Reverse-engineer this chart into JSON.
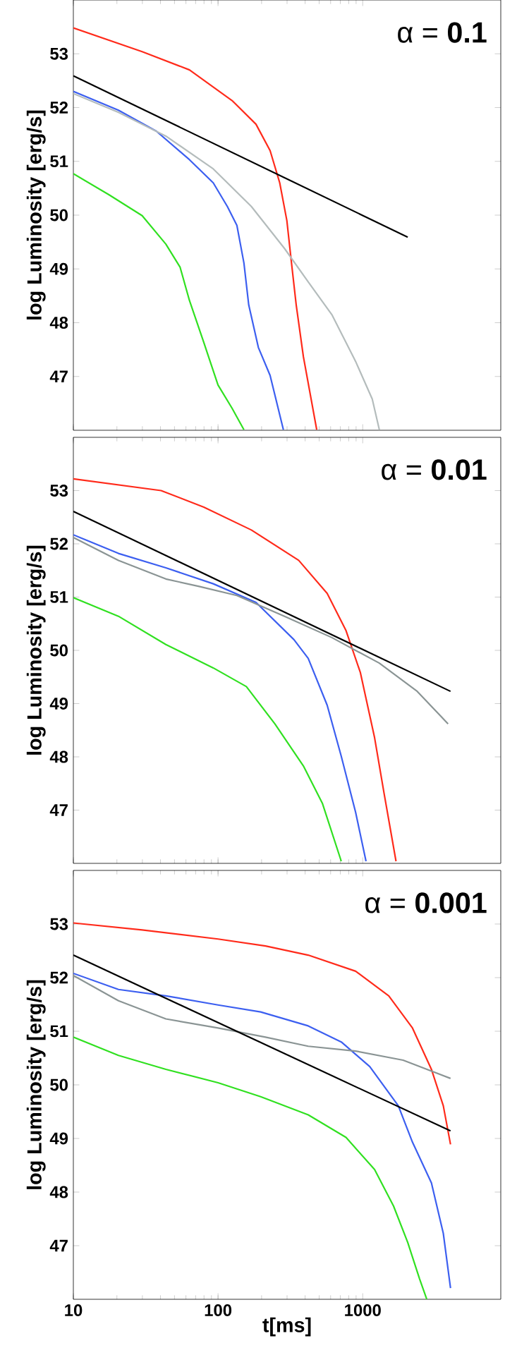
{
  "chart_data": [
    {
      "type": "line",
      "ylabel": "log Luminosity [erg/s]",
      "log": "x",
      "xlim": [
        10,
        9000
      ],
      "ylim": [
        46,
        54
      ],
      "xticks": [
        10,
        100,
        1000
      ],
      "yticks": [
        47,
        48,
        49,
        50,
        51,
        52,
        53
      ],
      "tick_labels": "y",
      "annotations": [
        "α = **0.1**"
      ],
      "series": [
        {
          "color": "#ff2a1a",
          "x": [
            10,
            29.9,
            63.5,
            125,
            183,
            229,
            267,
            299,
            322,
            347,
            389,
            481
          ],
          "values": [
            53.48,
            53.04,
            52.7,
            52.13,
            51.69,
            51.2,
            50.6,
            49.9,
            49.11,
            48.33,
            47.37,
            46.01
          ]
        },
        {
          "color": "#3c5ff0",
          "x": [
            10,
            20.5,
            37.5,
            63.5,
            92.7,
            116,
            135,
            151,
            163,
            190,
            229,
            283
          ],
          "values": [
            52.3,
            51.95,
            51.56,
            51.03,
            50.6,
            50.16,
            49.81,
            49.11,
            48.33,
            47.54,
            47.02,
            46.01
          ]
        },
        {
          "color": "#b4bcbc",
          "x": [
            10,
            20.5,
            43.6,
            92.7,
            170,
            288,
            420,
            612,
            893,
            1164,
            1303
          ],
          "values": [
            52.26,
            51.91,
            51.47,
            50.86,
            50.16,
            49.38,
            48.76,
            48.15,
            47.28,
            46.58,
            46.01
          ]
        },
        {
          "color": "#30e020",
          "x": [
            10,
            17.6,
            29.9,
            43.6,
            54.7,
            63.5,
            79.8,
            100,
            125,
            151
          ],
          "values": [
            50.77,
            50.38,
            49.99,
            49.46,
            49.03,
            48.41,
            47.63,
            46.84,
            46.41,
            46.01
          ]
        },
        {
          "color": "#000000",
          "x": [
            10,
            2047
          ],
          "values": [
            52.59,
            49.59
          ]
        }
      ]
    },
    {
      "type": "line",
      "ylabel": "log Luminosity [erg/s]",
      "log": "x",
      "xlim": [
        10,
        9000
      ],
      "ylim": [
        46,
        54
      ],
      "xticks": [
        10,
        100,
        1000
      ],
      "yticks": [
        47,
        48,
        49,
        50,
        51,
        52,
        53
      ],
      "tick_labels": "y",
      "annotations": [
        "α = **0.01**"
      ],
      "series": [
        {
          "color": "#ff2a1a",
          "x": [
            10,
            40.4,
            79.8,
            170,
            361,
            568,
            767,
            964,
            1208,
            1406,
            1699
          ],
          "values": [
            53.22,
            53.0,
            52.69,
            52.26,
            51.69,
            51.07,
            50.37,
            49.58,
            48.36,
            47.31,
            46.04
          ]
        },
        {
          "color": "#3c5ff0",
          "x": [
            10,
            20.5,
            43.6,
            92.7,
            183,
            335,
            420,
            568,
            711,
            893,
            1054
          ],
          "values": [
            52.17,
            51.82,
            51.55,
            51.25,
            50.9,
            50.2,
            49.85,
            48.97,
            48.01,
            46.96,
            46.04
          ]
        },
        {
          "color": "#8a9494",
          "x": [
            10,
            20.5,
            43.6,
            74,
            135,
            288,
            612,
            1303,
            2382,
            3890
          ],
          "values": [
            52.12,
            51.69,
            51.34,
            51.2,
            51.03,
            50.64,
            50.24,
            49.76,
            49.23,
            48.62
          ]
        },
        {
          "color": "#30e020",
          "x": [
            10,
            20.5,
            43.6,
            92.7,
            157,
            247,
            389,
            526,
            711
          ],
          "values": [
            50.99,
            50.64,
            50.11,
            49.67,
            49.32,
            48.62,
            47.83,
            47.13,
            46.04
          ]
        },
        {
          "color": "#000000",
          "x": [
            10,
            4045
          ],
          "values": [
            52.61,
            49.23
          ]
        }
      ]
    },
    {
      "type": "line",
      "ylabel": "log Luminosity [erg/s]",
      "xlabel": "t[ms]",
      "log": "x",
      "xlim": [
        10,
        9000
      ],
      "ylim": [
        46,
        54
      ],
      "xticks": [
        10,
        100,
        1000
      ],
      "yticks": [
        47,
        48,
        49,
        50,
        51,
        52,
        53
      ],
      "annotations": [
        "α = **0.001**"
      ],
      "series": [
        {
          "color": "#ff2a1a",
          "x": [
            10,
            29.9,
            100,
            213,
            420,
            893,
            1514,
            2208,
            2985,
            3606,
            4045
          ],
          "values": [
            53.02,
            52.89,
            52.72,
            52.59,
            52.42,
            52.12,
            51.66,
            51.06,
            50.29,
            49.61,
            48.89
          ]
        },
        {
          "color": "#3c5ff0",
          "x": [
            10,
            20.5,
            43.6,
            100,
            197,
            420,
            711,
            1119,
            1762,
            2208,
            2985,
            3606,
            4045
          ],
          "values": [
            52.08,
            51.78,
            51.66,
            51.49,
            51.36,
            51.1,
            50.8,
            50.34,
            49.61,
            48.93,
            48.17,
            47.23,
            46.21
          ]
        },
        {
          "color": "#8a9494",
          "x": [
            10,
            20.5,
            43.6,
            100,
            213,
            420,
            893,
            1901,
            4045
          ],
          "values": [
            52.04,
            51.57,
            51.23,
            51.06,
            50.89,
            50.72,
            50.63,
            50.46,
            50.12
          ]
        },
        {
          "color": "#30e020",
          "x": [
            10,
            20.5,
            43.6,
            100,
            197,
            420,
            767,
            1208,
            1633,
            2047,
            2472,
            2773
          ],
          "values": [
            50.89,
            50.55,
            50.29,
            50.04,
            49.78,
            49.44,
            49.02,
            48.42,
            47.74,
            47.06,
            46.38,
            46.0
          ]
        },
        {
          "color": "#000000",
          "x": [
            10,
            4045
          ],
          "values": [
            52.42,
            49.14
          ]
        }
      ]
    }
  ]
}
